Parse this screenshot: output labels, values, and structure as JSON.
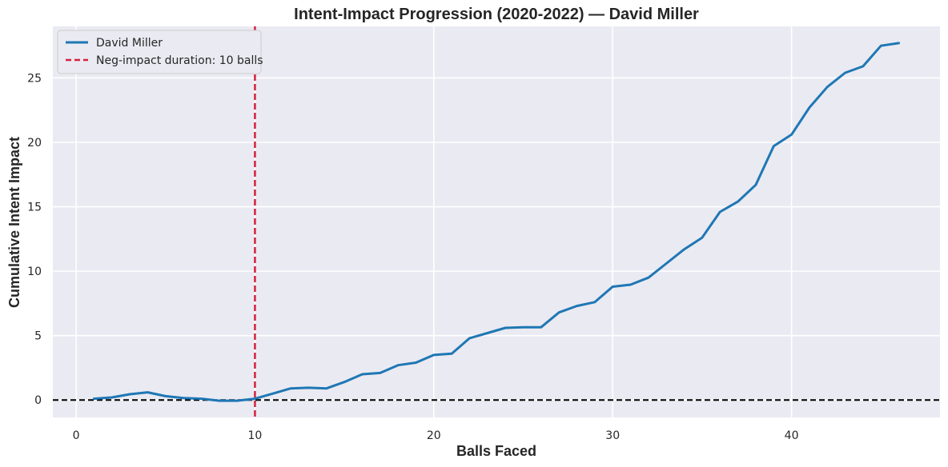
{
  "chart_data": {
    "type": "line",
    "title": "Intent-Impact Progression (2020-2022) — David Miller",
    "xlabel": "Balls Faced",
    "ylabel": "Cumulative Intent Impact",
    "xlim": [
      -1.3,
      48.3
    ],
    "ylim": [
      -1.35,
      29.0
    ],
    "xticks": [
      0,
      10,
      20,
      30,
      40
    ],
    "yticks": [
      0,
      5,
      10,
      15,
      20,
      25
    ],
    "grid": true,
    "legend_position": "top-left",
    "series": [
      {
        "name": "David Miller",
        "color": "#1f77b4",
        "x": [
          1,
          2,
          3,
          4,
          5,
          6,
          7,
          8,
          9,
          10,
          11,
          12,
          13,
          14,
          15,
          16,
          17,
          18,
          19,
          20,
          21,
          22,
          23,
          24,
          25,
          26,
          27,
          28,
          29,
          30,
          31,
          32,
          33,
          34,
          35,
          36,
          37,
          38,
          39,
          40,
          41,
          42,
          43,
          44,
          45,
          46
        ],
        "y": [
          0.1,
          0.2,
          0.45,
          0.6,
          0.3,
          0.15,
          0.1,
          -0.05,
          -0.05,
          0.1,
          0.5,
          0.9,
          0.95,
          0.9,
          1.4,
          2.0,
          2.1,
          2.7,
          2.9,
          3.5,
          3.6,
          4.8,
          5.2,
          5.6,
          5.65,
          5.65,
          6.8,
          7.3,
          7.6,
          8.8,
          8.95,
          9.5,
          10.6,
          11.7,
          12.6,
          14.6,
          15.4,
          16.7,
          19.7,
          20.6,
          22.7,
          24.3,
          25.4,
          25.9,
          27.5,
          27.7
        ]
      }
    ],
    "reference_lines": [
      {
        "orientation": "vertical",
        "value": 10,
        "label": "Neg-impact duration: 10 balls",
        "color": "#d62040",
        "style": "dashed"
      },
      {
        "orientation": "horizontal",
        "value": 0,
        "color": "#000000",
        "style": "dashed"
      }
    ],
    "background": "#eaeaf2",
    "grid_color": "#ffffff"
  }
}
